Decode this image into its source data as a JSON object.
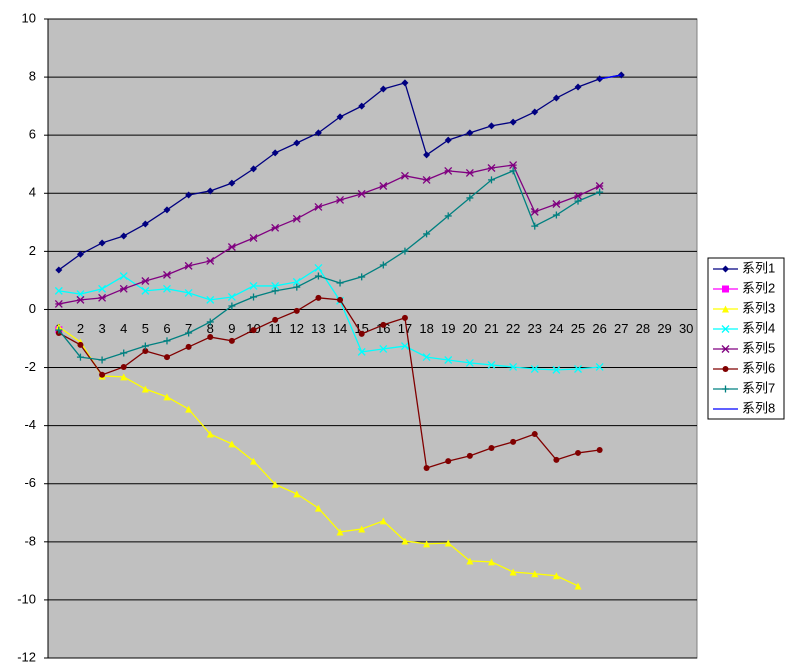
{
  "chart_data": {
    "type": "line",
    "categories": [
      1,
      2,
      3,
      4,
      5,
      6,
      7,
      8,
      9,
      10,
      11,
      12,
      13,
      14,
      15,
      16,
      17,
      18,
      19,
      20,
      21,
      22,
      23,
      24,
      25,
      26,
      27,
      28,
      29,
      30
    ],
    "ylim": [
      -12,
      10
    ],
    "yticks": [
      -12,
      -10,
      -8,
      -6,
      -4,
      -2,
      0,
      2,
      4,
      6,
      8,
      10
    ],
    "grid": true,
    "legend": "right",
    "series": [
      {
        "name": "系列1",
        "color": "#000080",
        "marker": "diamond",
        "values": [
          1.36,
          1.9,
          2.29,
          2.53,
          2.94,
          3.43,
          3.94,
          4.08,
          4.35,
          4.84,
          5.39,
          5.73,
          6.08,
          6.63,
          7.0,
          7.59,
          7.8,
          5.32,
          5.83,
          6.08,
          6.32,
          6.45,
          6.8,
          7.28,
          7.66,
          7.94,
          8.07,
          null,
          null,
          null
        ]
      },
      {
        "name": "系列2",
        "color": "#FF00FF",
        "marker": "square",
        "values": [
          -0.7,
          null,
          null,
          null,
          null,
          null,
          null,
          null,
          null,
          null,
          null,
          null,
          null,
          null,
          null,
          null,
          null,
          null,
          null,
          null,
          null,
          null,
          null,
          null,
          null,
          null,
          null,
          null,
          null,
          null
        ]
      },
      {
        "name": "系列3",
        "color": "#FFFF00",
        "marker": "triangle",
        "values": [
          -0.6,
          -1.12,
          -2.29,
          -2.32,
          -2.74,
          -3.01,
          -3.43,
          -4.29,
          -4.63,
          -5.22,
          -6.02,
          -6.35,
          -6.84,
          -7.66,
          -7.56,
          -7.28,
          -7.97,
          -8.07,
          -8.04,
          -8.66,
          -8.69,
          -9.04,
          -9.1,
          -9.17,
          -9.52,
          null,
          null,
          null,
          null,
          null
        ]
      },
      {
        "name": "系列4",
        "color": "#00FFFF",
        "marker": "x",
        "values": [
          0.64,
          0.53,
          0.71,
          1.15,
          0.64,
          0.71,
          0.57,
          0.33,
          0.43,
          0.81,
          0.81,
          0.95,
          1.43,
          0.3,
          -1.46,
          -1.36,
          -1.26,
          -1.64,
          -1.74,
          -1.84,
          -1.91,
          -1.98,
          -2.05,
          -2.08,
          -2.05,
          -1.98,
          null,
          null,
          null,
          null
        ]
      },
      {
        "name": "系列5",
        "color": "#800080",
        "marker": "asterisk",
        "values": [
          0.19,
          0.33,
          0.4,
          0.71,
          0.98,
          1.19,
          1.5,
          1.67,
          2.15,
          2.46,
          2.81,
          3.12,
          3.53,
          3.77,
          3.98,
          4.25,
          4.6,
          4.46,
          4.77,
          4.7,
          4.87,
          4.97,
          3.36,
          3.63,
          3.91,
          4.25,
          null,
          null,
          null,
          null
        ]
      },
      {
        "name": "系列6",
        "color": "#800000",
        "marker": "circle",
        "values": [
          -0.81,
          -1.22,
          -2.25,
          -1.98,
          -1.43,
          -1.64,
          -1.29,
          -0.95,
          -1.08,
          -0.71,
          -0.36,
          -0.05,
          0.4,
          0.33,
          -0.84,
          -0.53,
          -0.29,
          -5.46,
          -5.22,
          -5.04,
          -4.77,
          -4.56,
          -4.29,
          -5.18,
          -4.94,
          -4.84,
          null,
          null,
          null,
          null
        ]
      },
      {
        "name": "系列7",
        "color": "#008080",
        "marker": "plus",
        "values": [
          -0.71,
          -1.64,
          -1.74,
          -1.5,
          -1.26,
          -1.08,
          -0.81,
          -0.43,
          0.12,
          0.43,
          0.64,
          0.77,
          1.15,
          0.91,
          1.12,
          1.53,
          2.01,
          2.6,
          3.22,
          3.84,
          4.46,
          4.77,
          2.87,
          3.25,
          3.73,
          4.04,
          null,
          null,
          null,
          null
        ]
      },
      {
        "name": "系列8",
        "color": "#0000FF",
        "marker": "none",
        "values": [
          null,
          null,
          null,
          null,
          null,
          null,
          null,
          null,
          null,
          null,
          null,
          null,
          null,
          null,
          null,
          null,
          null,
          null,
          null,
          null,
          null,
          null,
          null,
          null,
          null,
          7.94,
          8.07,
          null,
          null,
          null
        ]
      }
    ]
  }
}
